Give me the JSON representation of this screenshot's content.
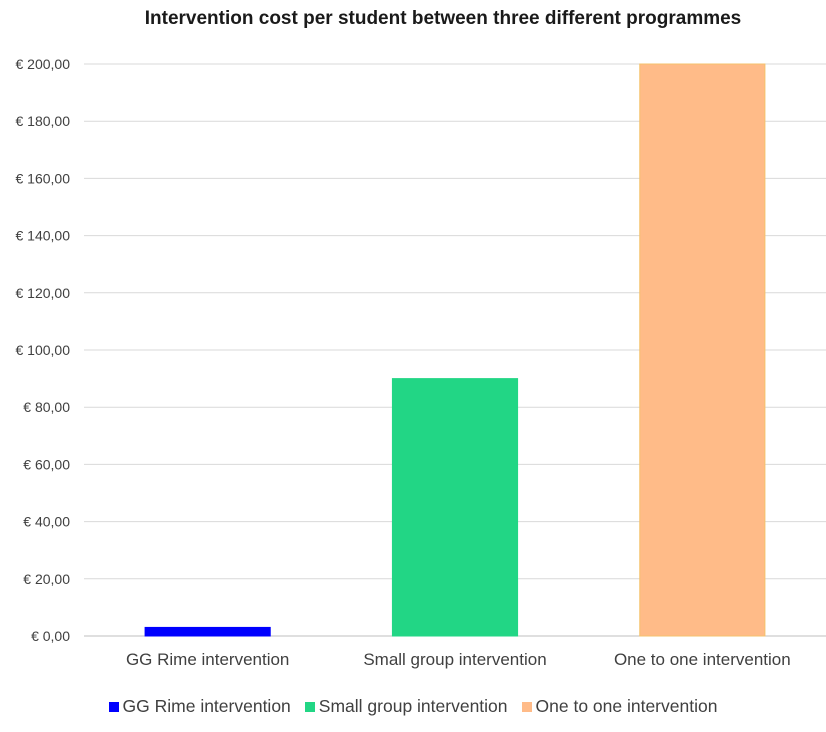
{
  "chart_data": {
    "type": "bar",
    "title": "Intervention cost per student between three different programmes",
    "xlabel": "",
    "ylabel": "",
    "categories": [
      "GG Rime intervention",
      "Small group intervention",
      "One to one intervention"
    ],
    "values": [
      3,
      90,
      200
    ],
    "colors": [
      "#0000ff",
      "#22d685",
      "#ffbb88"
    ],
    "border_colors": [
      "#0000ff",
      "#22d685",
      "#f5c26b"
    ],
    "ylim": [
      0,
      200
    ],
    "yticks": [
      0,
      20,
      40,
      60,
      80,
      100,
      120,
      140,
      160,
      180,
      200
    ],
    "ytick_labels": [
      "€ 0,00",
      "€ 20,00",
      "€ 40,00",
      "€ 60,00",
      "€ 80,00",
      "€ 100,00",
      "€ 120,00",
      "€ 140,00",
      "€ 160,00",
      "€ 180,00",
      "€ 200,00"
    ],
    "grid": true,
    "legend": {
      "position": "bottom",
      "entries": [
        "GG Rime intervention",
        "Small group intervention",
        "One to one intervention"
      ]
    }
  }
}
